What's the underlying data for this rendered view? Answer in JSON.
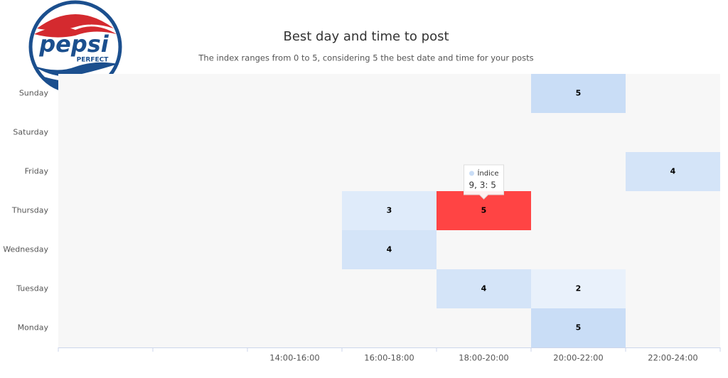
{
  "logo": {
    "name": "pepsi",
    "tagline": "PERFECT"
  },
  "chart_data": {
    "type": "heatmap",
    "title": "Best day and time to post",
    "subtitle": "The index ranges from 0 to 5, considering 5 the best date and time for your posts",
    "categories": [
      null,
      null,
      "14:00-16:00",
      "16:00-18:00",
      "18:00-20:00",
      "20:00-22:00",
      "22:00-24:00"
    ],
    "y_categories": [
      "Monday",
      "Tuesday",
      "Wednesday",
      "Thursday",
      "Friday",
      "Saturday",
      "Sunday"
    ],
    "series_name": "Índice",
    "points": [
      [
        5,
        6,
        5
      ],
      [
        6,
        4,
        4
      ],
      [
        3,
        3,
        3
      ],
      [
        4,
        3,
        5
      ],
      [
        3,
        2,
        4
      ],
      [
        4,
        1,
        4
      ],
      [
        5,
        1,
        2
      ],
      [
        5,
        0,
        5
      ]
    ],
    "colorlim": [
      0,
      5
    ],
    "colors": [
      "#ffffff",
      "#c9ddf6"
    ],
    "highlight": {
      "point": 3,
      "color": "#ff4444"
    },
    "tooltip": {
      "series": "Índice",
      "text": "9, 3: 5"
    }
  }
}
